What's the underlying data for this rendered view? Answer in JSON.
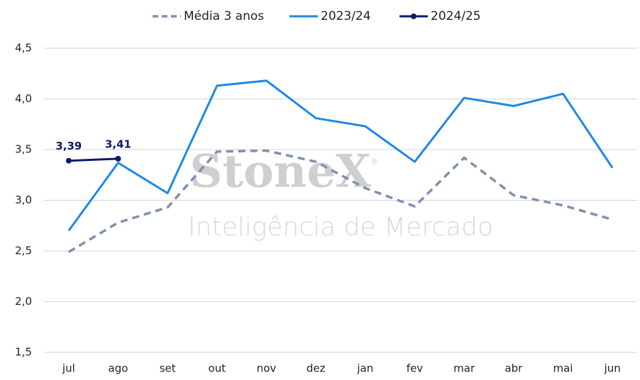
{
  "chart_data": {
    "type": "line",
    "categories": [
      "jul",
      "ago",
      "set",
      "out",
      "nov",
      "dez",
      "jan",
      "fev",
      "mar",
      "abr",
      "mai",
      "jun"
    ],
    "series": [
      {
        "name": "Média 3 anos",
        "color": "#7d90b0",
        "dashed": true,
        "values": [
          2.49,
          2.78,
          2.93,
          3.48,
          3.49,
          3.38,
          3.12,
          2.94,
          3.42,
          3.05,
          2.95,
          2.81
        ]
      },
      {
        "name": "2023/24",
        "color": "#1e88e5",
        "dashed": false,
        "values": [
          2.7,
          3.37,
          3.07,
          4.13,
          4.18,
          3.81,
          3.73,
          3.38,
          4.01,
          3.93,
          4.05,
          3.32
        ]
      },
      {
        "name": "2024/25",
        "color": "#0d1a6b",
        "dashed": false,
        "markers": true,
        "values": [
          3.39,
          3.41,
          null,
          null,
          null,
          null,
          null,
          null,
          null,
          null,
          null,
          null
        ],
        "value_labels": [
          "3,39",
          "3,41",
          null,
          null,
          null,
          null,
          null,
          null,
          null,
          null,
          null,
          null
        ]
      }
    ],
    "ylim": [
      1.5,
      4.5
    ],
    "yticks": [
      {
        "value": 1.5,
        "label": "1,5"
      },
      {
        "value": 2.0,
        "label": "2,0"
      },
      {
        "value": 2.5,
        "label": "2,5"
      },
      {
        "value": 3.0,
        "label": "3,0"
      },
      {
        "value": 3.5,
        "label": "3,5"
      },
      {
        "value": 4.0,
        "label": "4,0"
      },
      {
        "value": 4.5,
        "label": "4,5"
      }
    ],
    "grid": true,
    "legend": "top",
    "watermark": {
      "brand": "StoneX",
      "mark": "®",
      "tagline": "Inteligência de Mercado"
    }
  }
}
